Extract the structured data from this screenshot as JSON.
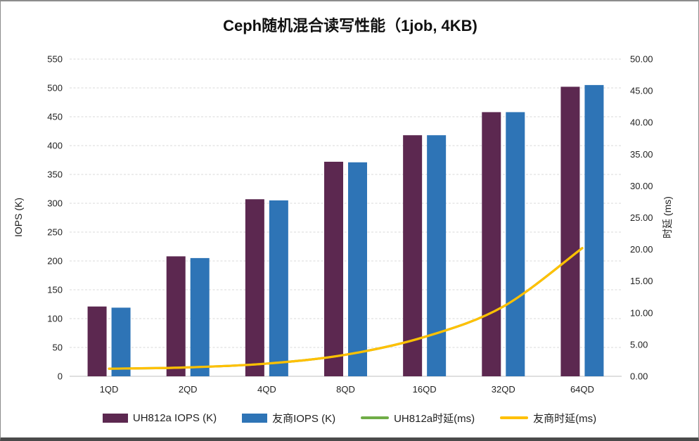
{
  "chart_data": {
    "type": "combo-bar-line",
    "title": "Ceph随机混合读写性能（1job, 4KB)",
    "categories": [
      "1QD",
      "2QD",
      "4QD",
      "8QD",
      "16QD",
      "32QD",
      "64QD"
    ],
    "bar_series": [
      {
        "name": "UH812a IOPS (K)",
        "color": "#5C2850",
        "values": [
          121,
          208,
          307,
          372,
          418,
          458,
          502
        ]
      },
      {
        "name": "友商IOPS (K)",
        "color": "#2E74B6",
        "values": [
          119,
          205,
          305,
          371,
          418,
          458,
          505
        ]
      }
    ],
    "line_series": [
      {
        "name": "UH812a时延(ms)",
        "color": "#70AD47",
        "values": [
          1.2,
          1.4,
          2.0,
          3.4,
          6.2,
          11.0,
          20.2
        ],
        "visible_in_plot": false
      },
      {
        "name": "友商时延(ms)",
        "color": "#FFC000",
        "values": [
          1.2,
          1.4,
          2.0,
          3.4,
          6.2,
          11.0,
          20.2
        ],
        "visible_in_plot": true
      }
    ],
    "left_axis": {
      "title": "IOPS (K)",
      "min": 0,
      "max": 550,
      "step": 50,
      "tick_labels": [
        "0",
        "50",
        "100",
        "150",
        "200",
        "250",
        "300",
        "350",
        "400",
        "450",
        "500",
        "550"
      ]
    },
    "right_axis": {
      "title": "时延 (ms)",
      "min": 0,
      "max": 50,
      "step": 5,
      "tick_labels": [
        "0.00",
        "5.00",
        "10.00",
        "15.00",
        "20.00",
        "25.00",
        "30.00",
        "35.00",
        "40.00",
        "45.00",
        "50.00"
      ]
    },
    "grid": true,
    "gridline_color": "#D9D9D9",
    "baseline_color": "#BFBFBF",
    "legend_position": "bottom"
  }
}
